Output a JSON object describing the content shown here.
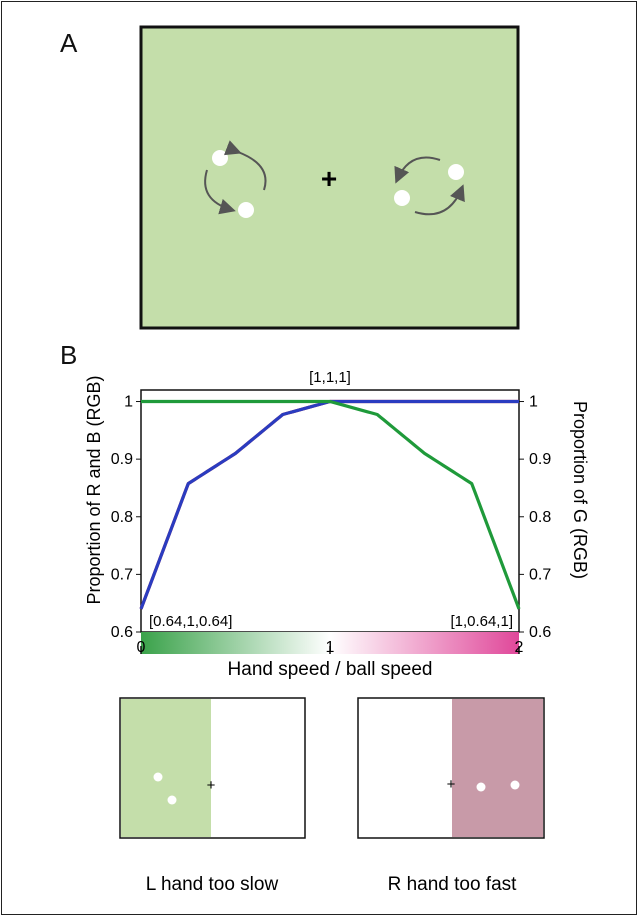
{
  "panel_a": {
    "label": "A",
    "background_color": "#c4deaa",
    "fixation": "+"
  },
  "panel_b": {
    "label": "B"
  },
  "chart_data": {
    "type": "line",
    "title": "",
    "xlabel": "Hand speed / ball speed",
    "ylabel_left": "Proportion of R and B (RGB)",
    "ylabel_right": "Proportion of G (RGB)",
    "xlim": [
      0,
      2
    ],
    "ylim": [
      0.6,
      1.02
    ],
    "x_ticks": [
      "0",
      "1",
      "2"
    ],
    "y_ticks_left": [
      "0.6",
      "0.7",
      "0.8",
      "0.9",
      "1"
    ],
    "y_ticks_right": [
      "0.6",
      "0.7",
      "0.8",
      "0.9",
      "1"
    ],
    "annotations": [
      "[1,1,1]",
      "[0.64,1,0.64]",
      "[1,0.64,1]"
    ],
    "series": [
      {
        "color": "#d92020",
        "x": [
          0,
          0.25,
          0.5,
          0.75,
          1,
          2
        ],
        "y": [
          0.64,
          0.8575,
          0.91,
          0.9775,
          1,
          1
        ]
      },
      {
        "color": "#2a3cc0",
        "x": [
          0,
          0.25,
          0.5,
          0.75,
          1,
          2
        ],
        "y": [
          0.64,
          0.8575,
          0.91,
          0.9775,
          1,
          1
        ]
      },
      {
        "color": "#1f9a3a",
        "x": [
          0,
          1,
          1.25,
          1.5,
          1.75,
          2
        ],
        "y": [
          1,
          1,
          0.9775,
          0.91,
          0.8575,
          0.64
        ]
      }
    ],
    "colorbar": {
      "left": "#3aa24a",
      "middle": "#ffffff",
      "right": "#e0489a"
    }
  },
  "examples": [
    {
      "caption": "L hand too slow",
      "fill_color": "#c4deaa",
      "fill_side": "left",
      "fixation": "+"
    },
    {
      "caption": "R hand too fast",
      "fill_color": "#c89aa8",
      "fill_side": "right",
      "fixation": "+"
    }
  ]
}
